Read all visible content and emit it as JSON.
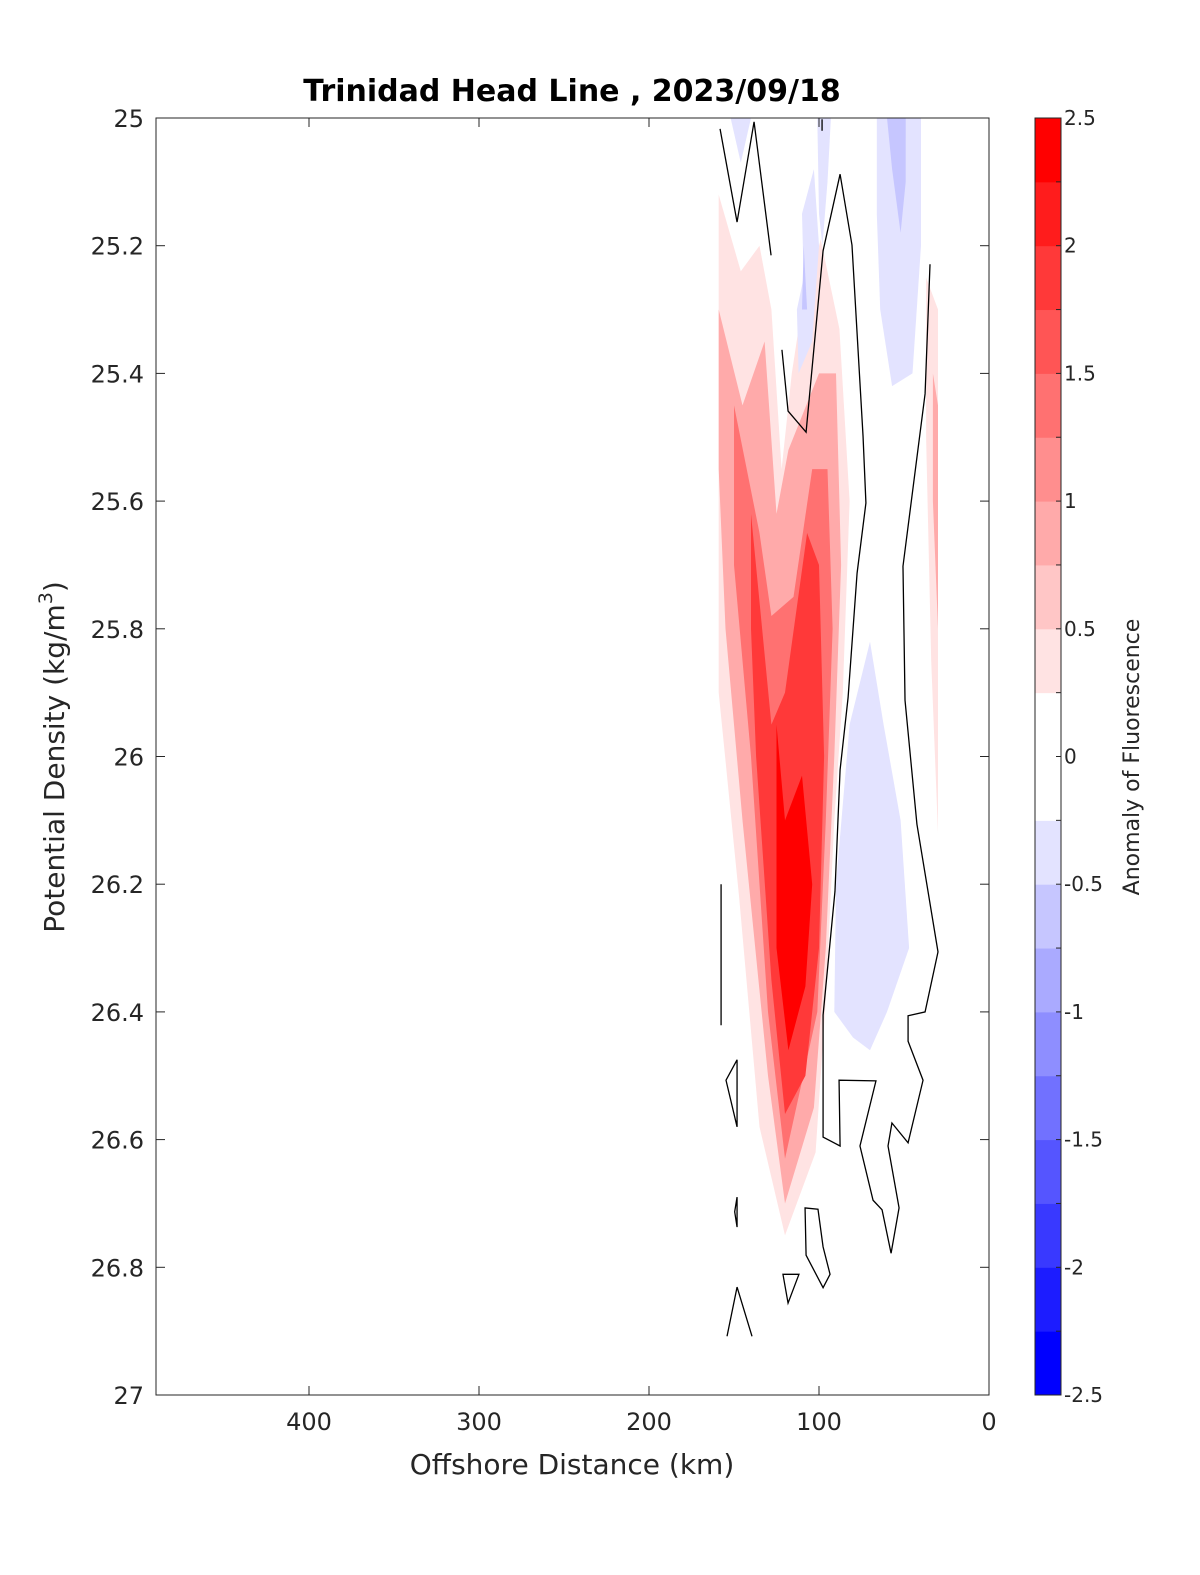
{
  "chart_data": {
    "type": "contourf",
    "title": "Trinidad Head Line , 2023/09/18",
    "xlabel": "Offshore Distance (km)",
    "ylabel_main": "Potential Density (kg/m",
    "ylabel_sup": "3",
    "ylabel_end": ")",
    "xlim": [
      490,
      0
    ],
    "ylim": [
      27,
      25
    ],
    "x_reversed": true,
    "y_reversed": true,
    "xticks": [
      400,
      300,
      200,
      100,
      0
    ],
    "xtick_labels": [
      "400",
      "300",
      "200",
      "100",
      "0"
    ],
    "yticks": [
      25,
      25.2,
      25.4,
      25.6,
      25.8,
      26,
      26.2,
      26.4,
      26.6,
      26.8,
      27
    ],
    "ytick_labels": [
      "25",
      "25.2",
      "25.4",
      "25.6",
      "25.8",
      "26",
      "26.2",
      "26.4",
      "26.6",
      "26.8",
      "27"
    ],
    "colorbar": {
      "label": "Anomaly of Fluorescence",
      "clim": [
        -2.5,
        2.5
      ],
      "step": 0.25,
      "ticks": [
        2.5,
        2,
        1.5,
        1,
        0.5,
        0,
        -0.5,
        -1,
        -1.5,
        -2,
        -2.5
      ],
      "tick_labels": [
        "2.5",
        "2",
        "1.5",
        "1",
        "0.5",
        "0",
        "-0.5",
        "-1",
        "-1.5",
        "-2",
        "-2.5"
      ],
      "positive_color": "#ff0000",
      "negative_color": "#0000ff"
    },
    "filled_regions": [
      {
        "level": 0.25,
        "points": [
          [
            159,
            25.12
          ],
          [
            146,
            25.24
          ],
          [
            135,
            25.2
          ],
          [
            128,
            25.3
          ],
          [
            122,
            25.55
          ],
          [
            116,
            25.4
          ],
          [
            112,
            25.33
          ],
          [
            99,
            25.19
          ],
          [
            88,
            25.33
          ],
          [
            82,
            25.6
          ],
          [
            86,
            25.9
          ],
          [
            91,
            26.1
          ],
          [
            96,
            26.38
          ],
          [
            102,
            26.62
          ],
          [
            120,
            26.75
          ],
          [
            135,
            26.58
          ],
          [
            147,
            26.22
          ],
          [
            159,
            25.9
          ]
        ]
      },
      {
        "level": 0.75,
        "points": [
          [
            159,
            25.3
          ],
          [
            145,
            25.45
          ],
          [
            132,
            25.35
          ],
          [
            125,
            25.62
          ],
          [
            118,
            25.52
          ],
          [
            100,
            25.4
          ],
          [
            90,
            25.4
          ],
          [
            87,
            25.7
          ],
          [
            91,
            26.0
          ],
          [
            96,
            26.3
          ],
          [
            103,
            26.55
          ],
          [
            120,
            26.7
          ],
          [
            130,
            26.5
          ],
          [
            145,
            26.1
          ],
          [
            155,
            25.8
          ],
          [
            159,
            25.55
          ]
        ]
      },
      {
        "level": 1.25,
        "points": [
          [
            150,
            25.45
          ],
          [
            135,
            25.65
          ],
          [
            128,
            25.78
          ],
          [
            115,
            25.75
          ],
          [
            104,
            25.55
          ],
          [
            95,
            25.55
          ],
          [
            92,
            25.8
          ],
          [
            96,
            26.1
          ],
          [
            101,
            26.4
          ],
          [
            120,
            26.63
          ],
          [
            130,
            26.4
          ],
          [
            140,
            26.0
          ],
          [
            150,
            25.7
          ]
        ]
      },
      {
        "level": 1.75,
        "points": [
          [
            140,
            25.62
          ],
          [
            128,
            25.95
          ],
          [
            120,
            25.9
          ],
          [
            107,
            25.65
          ],
          [
            100,
            25.7
          ],
          [
            97,
            26.0
          ],
          [
            100,
            26.3
          ],
          [
            108,
            26.5
          ],
          [
            120,
            26.56
          ],
          [
            128,
            26.35
          ],
          [
            137,
            26.0
          ],
          [
            140,
            25.8
          ]
        ]
      },
      {
        "level": 2.25,
        "points": [
          [
            125,
            25.95
          ],
          [
            120,
            26.1
          ],
          [
            110,
            26.03
          ],
          [
            104,
            26.2
          ],
          [
            108,
            26.36
          ],
          [
            118,
            26.46
          ],
          [
            125,
            26.3
          ]
        ]
      },
      {
        "level": 0.25,
        "points": [
          [
            37,
            25.25
          ],
          [
            30,
            25.3
          ],
          [
            30,
            26.12
          ],
          [
            34,
            25.85
          ],
          [
            37,
            25.5
          ]
        ]
      },
      {
        "level": 0.75,
        "points": [
          [
            33,
            25.4
          ],
          [
            30,
            25.45
          ],
          [
            30,
            25.8
          ],
          [
            33,
            25.6
          ]
        ]
      },
      {
        "level": -0.25,
        "points": [
          [
            66,
            25
          ],
          [
            40,
            25
          ],
          [
            40,
            25.2
          ],
          [
            45,
            25.4
          ],
          [
            57,
            25.42
          ],
          [
            64,
            25.3
          ],
          [
            66,
            25.15
          ]
        ]
      },
      {
        "level": -0.5,
        "points": [
          [
            60,
            25
          ],
          [
            49,
            25
          ],
          [
            49,
            25.1
          ],
          [
            52,
            25.18
          ],
          [
            57,
            25.08
          ]
        ]
      },
      {
        "level": -0.25,
        "points": [
          [
            152,
            25
          ],
          [
            140,
            25
          ],
          [
            146,
            25.07
          ]
        ]
      },
      {
        "level": -0.25,
        "points": [
          [
            101,
            25
          ],
          [
            93,
            25
          ],
          [
            95,
            25.1
          ],
          [
            98,
            25.2
          ],
          [
            100,
            25.15
          ]
        ]
      },
      {
        "level": -0.25,
        "points": [
          [
            110,
            25.15
          ],
          [
            103,
            25.08
          ],
          [
            100,
            25.2
          ],
          [
            104,
            25.35
          ],
          [
            112,
            25.4
          ],
          [
            113,
            25.3
          ],
          [
            109,
            25.25
          ]
        ]
      },
      {
        "level": -0.5,
        "points": [
          [
            109,
            25.2
          ],
          [
            107,
            25.3
          ],
          [
            110,
            25.3
          ]
        ]
      },
      {
        "level": -0.25,
        "points": [
          [
            70,
            25.82
          ],
          [
            82,
            25.95
          ],
          [
            90,
            26.2
          ],
          [
            91,
            26.4
          ],
          [
            80,
            26.44
          ],
          [
            70,
            26.46
          ],
          [
            60,
            26.4
          ],
          [
            47,
            26.3
          ],
          [
            52,
            26.1
          ],
          [
            62,
            25.95
          ]
        ]
      }
    ],
    "zero_contours": [
      {
        "closed": false,
        "points": [
          [
            121.8,
            25.363
          ],
          [
            118.2,
            25.459
          ],
          [
            107.6,
            25.492
          ],
          [
            97.6,
            25.208
          ],
          [
            87.6,
            25.088
          ],
          [
            80.6,
            25.199
          ],
          [
            74.1,
            25.498
          ],
          [
            72.4,
            25.603
          ],
          [
            77.6,
            25.713
          ],
          [
            82.9,
            25.908
          ],
          [
            87.6,
            26.021
          ],
          [
            90.6,
            26.211
          ],
          [
            97.6,
            26.405
          ],
          [
            97.6,
            26.596
          ],
          [
            87.6,
            26.61
          ],
          [
            88.2,
            26.507
          ],
          [
            66.5,
            26.508
          ],
          [
            75.9,
            26.61
          ],
          [
            68.2,
            26.695
          ],
          [
            62.9,
            26.71
          ],
          [
            57.6,
            26.778
          ],
          [
            52.9,
            26.707
          ],
          [
            59.4,
            26.61
          ],
          [
            57.1,
            26.574
          ],
          [
            47.6,
            26.605
          ],
          [
            38.8,
            26.507
          ],
          [
            47.6,
            26.446
          ],
          [
            47.6,
            26.406
          ],
          [
            37.6,
            26.4
          ],
          [
            30.0,
            26.306
          ],
          [
            42.4,
            26.106
          ],
          [
            49.4,
            25.912
          ],
          [
            50.6,
            25.702
          ],
          [
            37.6,
            25.432
          ],
          [
            34.7,
            25.229
          ]
        ]
      },
      {
        "closed": false,
        "points": [
          [
            158.2,
            25.017
          ],
          [
            148.2,
            25.163
          ],
          [
            138.2,
            25.006
          ],
          [
            128.2,
            25.215
          ]
        ]
      },
      {
        "closed": false,
        "points": [
          [
            98.2,
            25.002
          ],
          [
            98.2,
            25.02
          ]
        ]
      },
      {
        "closed": false,
        "points": [
          [
            157.6,
            26.2
          ],
          [
            157.6,
            26.421
          ]
        ]
      },
      {
        "closed": true,
        "points": [
          [
            148.2,
            26.475
          ],
          [
            154.7,
            26.507
          ],
          [
            148.2,
            26.58
          ]
        ]
      },
      {
        "closed": true,
        "points": [
          [
            148.2,
            26.69
          ],
          [
            149.6,
            26.713
          ],
          [
            148.2,
            26.737
          ]
        ]
      },
      {
        "closed": true,
        "points": [
          [
            108.2,
            26.707
          ],
          [
            100.6,
            26.709
          ],
          [
            97.6,
            26.768
          ],
          [
            93.5,
            26.811
          ],
          [
            97.6,
            26.832
          ],
          [
            107.6,
            26.781
          ]
        ]
      },
      {
        "closed": true,
        "points": [
          [
            121.2,
            26.811
          ],
          [
            111.8,
            26.811
          ],
          [
            118.2,
            26.856
          ]
        ]
      },
      {
        "closed": false,
        "points": [
          [
            154.1,
            26.908
          ],
          [
            148.2,
            26.831
          ],
          [
            139.4,
            26.908
          ]
        ]
      }
    ]
  }
}
